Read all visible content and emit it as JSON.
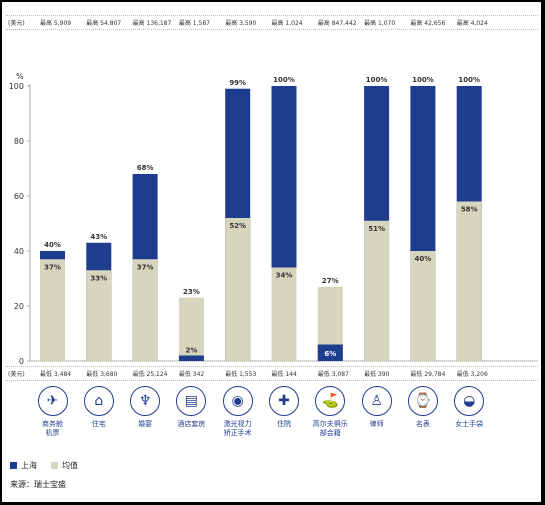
{
  "top_unit": "(美元)",
  "bottom_unit": "(美元)",
  "max_prices": [
    "最高 5,909",
    "最高 54,807",
    "最高 136,187",
    "最高 1,587",
    "最高 3,590",
    "最高 1,024",
    "最高 847,442",
    "最高 1,070",
    "最高 42,656",
    "最高 4,024"
  ],
  "min_prices": [
    "最低 3,484",
    "最低 3,680",
    "最低 25,124",
    "最低 342",
    "最低 1,553",
    "最低 144",
    "最低 3,087",
    "最低 390",
    "最低 29,784",
    "最低 3,206"
  ],
  "icons": [
    {
      "name": "business-jet-icon",
      "glyph": "✈"
    },
    {
      "name": "residence-icon",
      "glyph": "⌂"
    },
    {
      "name": "banquet-icon",
      "glyph": "♆"
    },
    {
      "name": "hotel-suite-icon",
      "glyph": "▤"
    },
    {
      "name": "laser-eye-surgery-icon",
      "glyph": "◉"
    },
    {
      "name": "hospital-icon",
      "glyph": "✚"
    },
    {
      "name": "golf-club-icon",
      "glyph": "⛳"
    },
    {
      "name": "lawyer-icon",
      "glyph": "♙"
    },
    {
      "name": "watch-icon",
      "glyph": "⌚"
    },
    {
      "name": "handbag-icon",
      "glyph": "◒"
    }
  ],
  "source": "来源：瑞士宝盛",
  "colors": {
    "shanghai": "#1f3d8f",
    "average": "#d6d5bd"
  },
  "chart_data": {
    "type": "bar",
    "stacked": "overlay",
    "y_unit": "%",
    "ylim": [
      0,
      100
    ],
    "yticks": [
      0,
      20,
      40,
      60,
      80,
      100
    ],
    "categories": [
      "商务舱\n机票",
      "住宅",
      "婚宴",
      "酒店套房",
      "激光视力\n矫正手术",
      "住院",
      "高尔夫俱乐\n部会籍",
      "律师",
      "名表",
      "女士手袋"
    ],
    "series": [
      {
        "name": "上海",
        "values": [
          40,
          43,
          68,
          2,
          99,
          100,
          6,
          100,
          100,
          100
        ]
      },
      {
        "name": "均值",
        "values": [
          37,
          33,
          37,
          23,
          52,
          34,
          27,
          51,
          40,
          58
        ]
      }
    ],
    "legend_position": "bottom-left",
    "grid": false
  }
}
